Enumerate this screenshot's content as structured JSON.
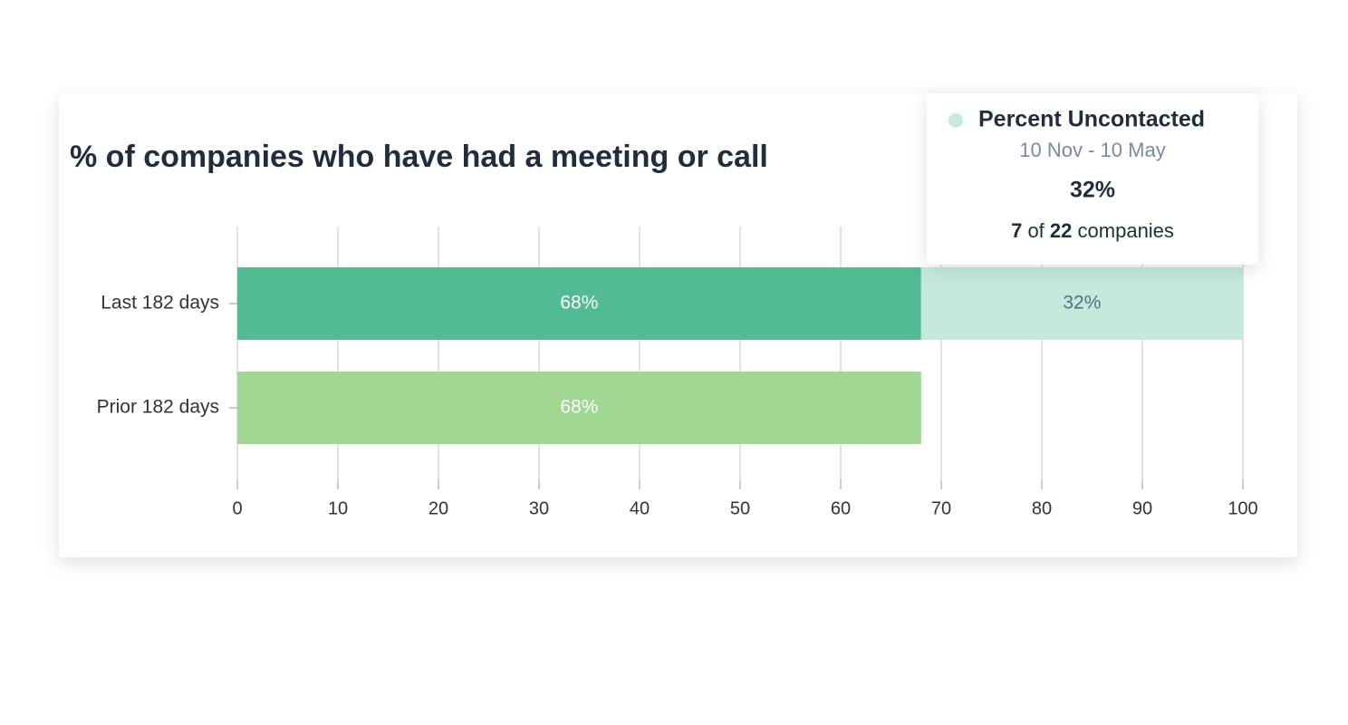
{
  "chart_data": {
    "type": "stacked-barh",
    "title": "% of companies who have had a meeting or call",
    "categories": [
      "Last 182 days",
      "Prior 182 days"
    ],
    "series": [
      {
        "colors": [
          "#52bb93",
          "#a0d792"
        ],
        "label_color": "#ffffff",
        "values": [
          68,
          68
        ],
        "value_labels": [
          "68%",
          "68%"
        ]
      },
      {
        "name": "Percent Uncontacted",
        "color": "#c5eadc",
        "label_color": "#5a6b80",
        "values": [
          32,
          null
        ],
        "value_labels": [
          "32%",
          null
        ]
      }
    ],
    "xlim": [
      0,
      100
    ],
    "xticks": [
      0,
      10,
      20,
      30,
      40,
      50,
      60,
      70,
      80,
      90,
      100
    ],
    "grid": true,
    "tooltip": {
      "period": "10 Nov - 10 May",
      "count": 7,
      "connector": "of",
      "total": 22,
      "unit": "companies"
    }
  }
}
